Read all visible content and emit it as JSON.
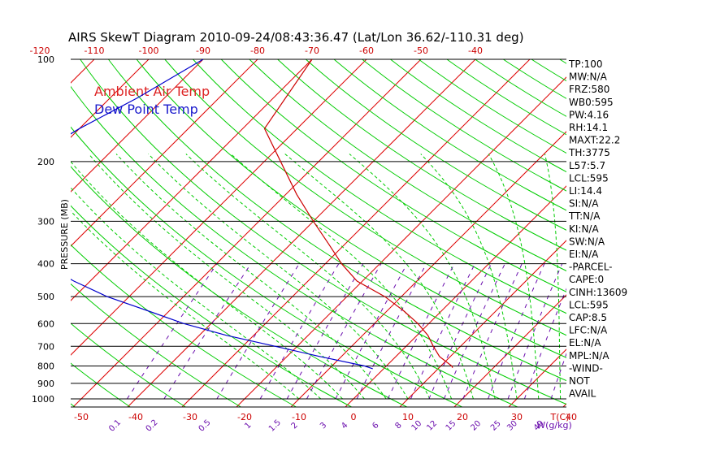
{
  "chart_data": {
    "type": "line",
    "title": "AIRS SkewT Diagram 2010-09-24/08:43:36.47 (Lat/Lon 36.62/-110.31 deg)",
    "ylabel": "PRESSURE (MB)",
    "xlabel": "T(C)",
    "mix_label": "W(g/kg)",
    "y_scale": "log",
    "ylim": [
      1000,
      100
    ],
    "xlim": [
      -50,
      40
    ],
    "pressure_ticks": [
      100,
      200,
      300,
      400,
      500,
      600,
      700,
      800,
      900,
      1000
    ],
    "top_temp_ticks": [
      -120,
      -110,
      -100,
      -90,
      -80,
      -70,
      -60,
      -50,
      -40
    ],
    "bottom_temp_ticks": [
      -50,
      -40,
      -30,
      -20,
      -10,
      0,
      10,
      20,
      30,
      40
    ],
    "mixing_ratio_ticks": [
      "0.1",
      "0.2",
      "0.5",
      "1",
      "1.5",
      "2",
      "3",
      "4",
      "6",
      "8",
      "10",
      "12",
      "15",
      "20",
      "25",
      "30",
      "40"
    ],
    "legend": [
      {
        "label": "Ambient Air Temp",
        "color": "#dd2222"
      },
      {
        "label": "Dew Point Temp",
        "color": "#1a1acc"
      }
    ],
    "series": [
      {
        "name": "Ambient Air Temp",
        "color": "#cc0000",
        "pressure": [
          100,
          160,
          200,
          250,
          300,
          350,
          400,
          450,
          500,
          550,
          600,
          650,
          700,
          750,
          800,
          810
        ],
        "temperature": [
          -70,
          -66,
          -57,
          -48,
          -40,
          -33,
          -27,
          -21,
          -13,
          -7,
          -2,
          2,
          5,
          8,
          12,
          12.5
        ]
      },
      {
        "name": "Dew Point Temp",
        "color": "#0000cc",
        "pressure": [
          100,
          130,
          160,
          200,
          250,
          300,
          350,
          400,
          450,
          500,
          550,
          600,
          650,
          700,
          750,
          800,
          815
        ],
        "temperature": [
          -90,
          -95,
          -100,
          -104,
          -104,
          -98,
          -90,
          -82,
          -73,
          -64,
          -54,
          -45,
          -35,
          -24,
          -14,
          -4,
          -2
        ]
      }
    ],
    "indices": [
      "TP:100",
      "MW:N/A",
      "FRZ:580",
      "WB0:595",
      "PW:4.16",
      "RH:14.1",
      "MAXT:22.2",
      "TH:3775",
      "L57:5.7",
      "LCL:595",
      "LI:14.4",
      "SI:N/A",
      "TT:N/A",
      "KI:N/A",
      "SW:N/A",
      "EI:N/A",
      "-PARCEL-",
      "CAPE:0",
      "CINH:13609",
      "LCL:595",
      "CAP:8.5",
      "LFC:N/A",
      "EL:N/A",
      "MPL:N/A",
      "-WIND-",
      "NOT",
      "AVAIL"
    ],
    "colors": {
      "isobar": "#000000",
      "isotherm": "#dd0000",
      "dry_adiabat": "#00cc00",
      "moist_adiabat": "#00cc00",
      "mixing_ratio": "#6a0dad"
    }
  }
}
